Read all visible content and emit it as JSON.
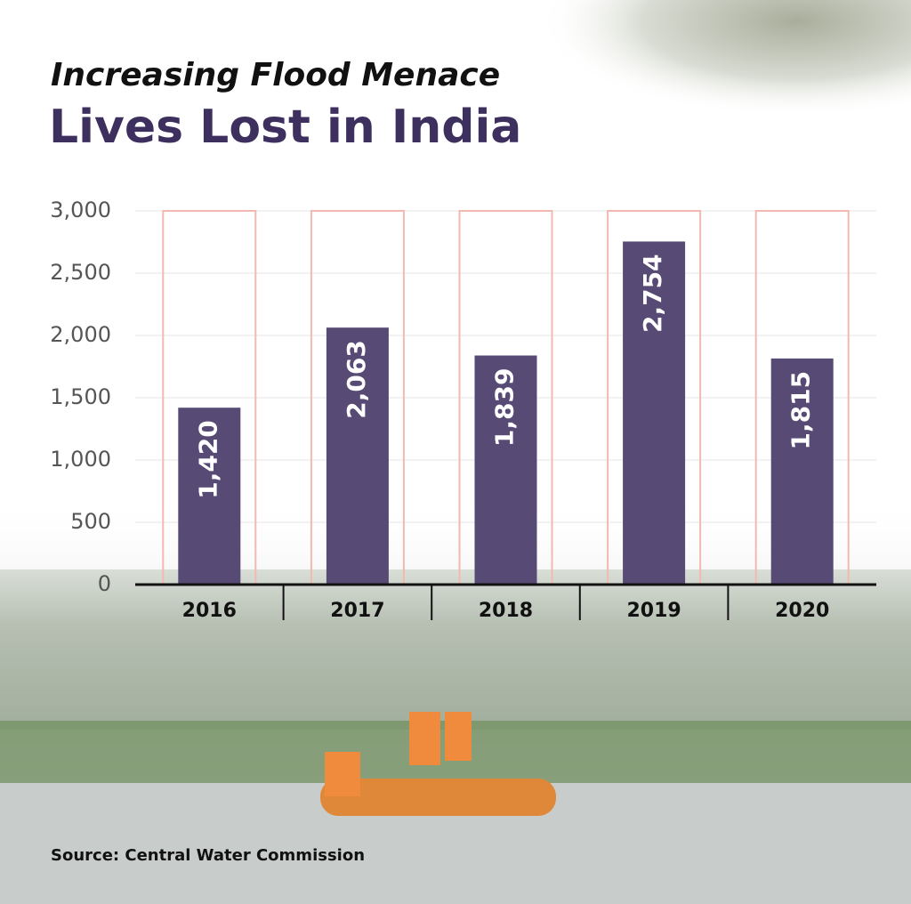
{
  "chart_data": {
    "type": "bar",
    "subtitle": "Increasing Flood Menace",
    "title": "Lives Lost in India",
    "categories": [
      "2016",
      "2017",
      "2018",
      "2019",
      "2020"
    ],
    "values": [
      1420,
      2063,
      1839,
      2754,
      1815
    ],
    "value_labels": [
      "1,420",
      "2,063",
      "1,839",
      "2,754",
      "1,815"
    ],
    "color": "#574a75",
    "ylim": [
      0,
      3000
    ],
    "yticks": [
      0,
      500,
      {
        "value": 1000,
        "label": "1,000"
      },
      {
        "value": 1500,
        "label": "1,500"
      },
      {
        "value": 2000,
        "label": "2,000"
      },
      {
        "value": 2500,
        "label": "2,500"
      },
      {
        "value": 3000,
        "label": "3,000"
      }
    ],
    "grid": true,
    "source": "Source: Central Water Commission"
  }
}
